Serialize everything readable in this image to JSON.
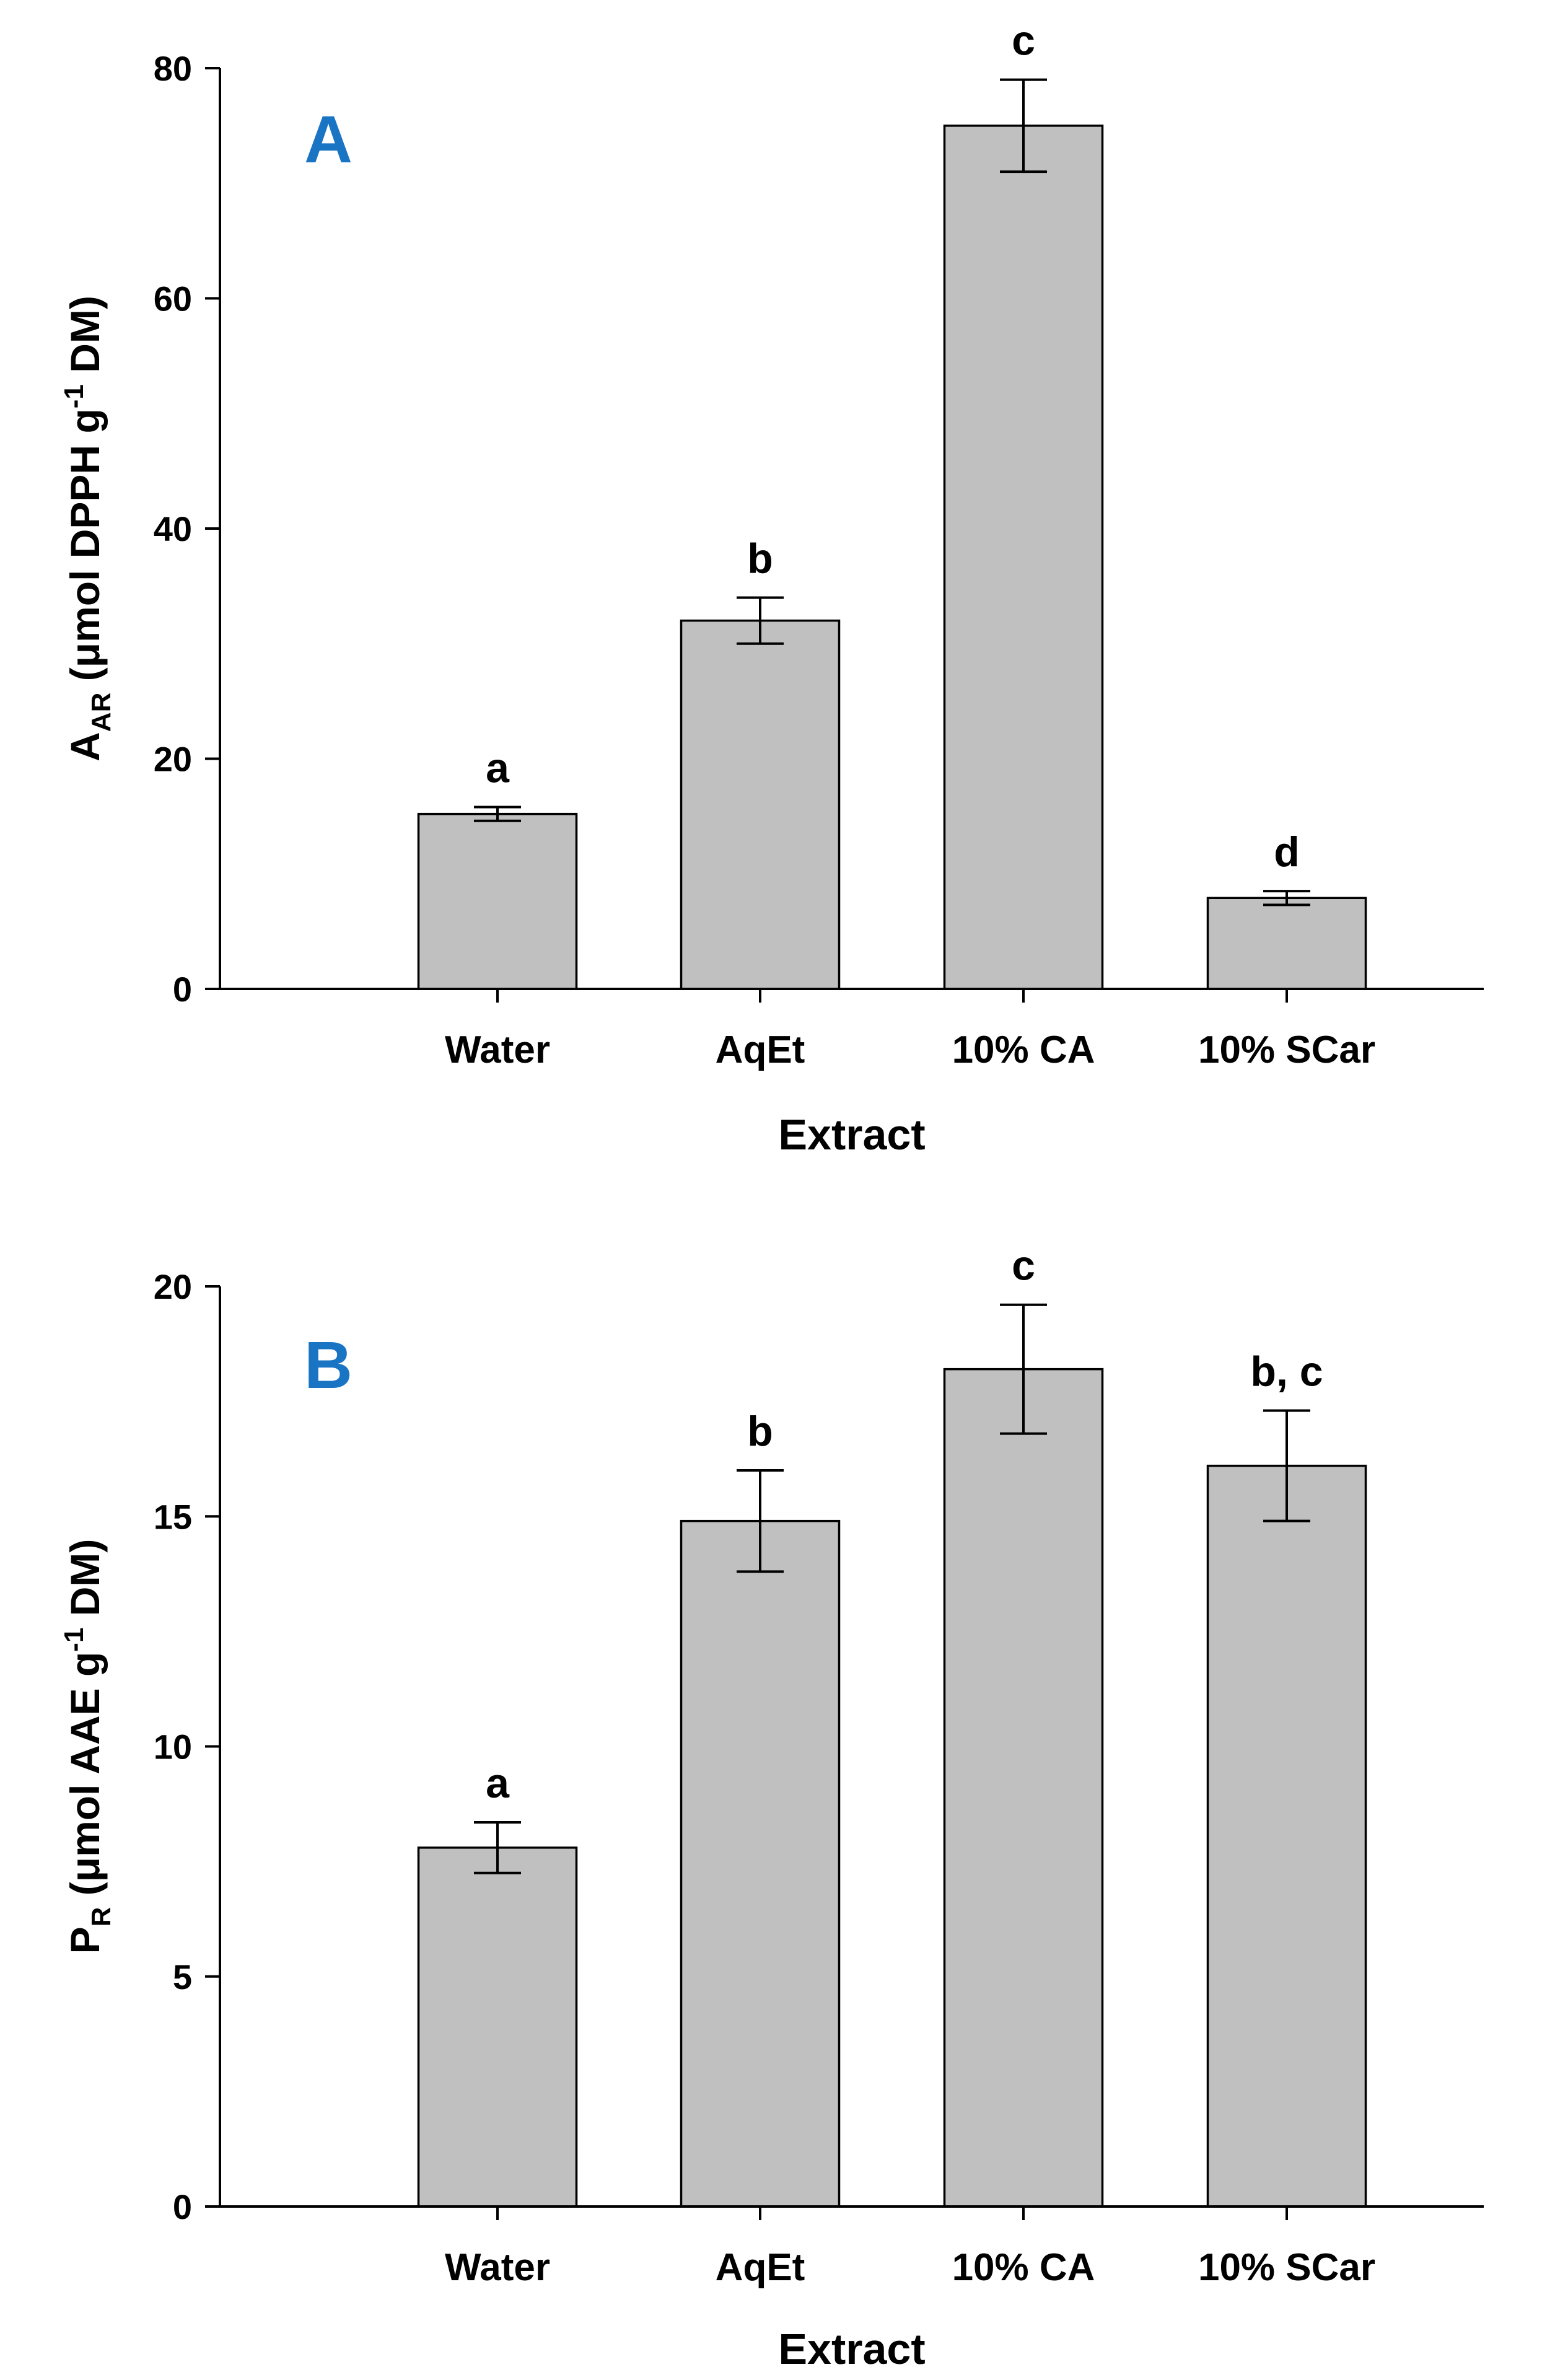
{
  "chart_data": [
    {
      "type": "bar",
      "panel_label": "A",
      "categories": [
        "Water",
        "AqEt",
        "10% CA",
        "10% SCar"
      ],
      "values": [
        15.2,
        32.0,
        75.0,
        7.9
      ],
      "errors": [
        0.6,
        2.0,
        4.0,
        0.6
      ],
      "significance": [
        "a",
        "b",
        "c",
        "d"
      ],
      "xlabel": "Extract",
      "ylabel": {
        "main": "A",
        "sub": "AR",
        "text": " (μmol DPPH g",
        "sup": "-1",
        "tail": " DM)"
      },
      "ylim": [
        0,
        80
      ],
      "yticks": [
        0,
        20,
        40,
        60,
        80
      ],
      "grid": false
    },
    {
      "type": "bar",
      "panel_label": "B",
      "categories": [
        "Water",
        "AqEt",
        "10% CA",
        "10% SCar"
      ],
      "values": [
        7.8,
        14.9,
        18.2,
        16.1
      ],
      "errors": [
        0.55,
        1.1,
        1.4,
        1.2
      ],
      "significance": [
        "a",
        "b",
        "c",
        "b, c"
      ],
      "xlabel": "Extract",
      "ylabel": {
        "main": "P",
        "sub": "R",
        "text": " (μmol AAE g",
        "sup": "-1",
        "tail": " DM)"
      },
      "ylim": [
        0,
        20
      ],
      "yticks": [
        0,
        5,
        10,
        15,
        20
      ],
      "grid": false
    }
  ],
  "colors": {
    "bar_fill": "#c0c0c0",
    "bar_stroke": "#000000",
    "panel_label": "#1a74c4"
  }
}
